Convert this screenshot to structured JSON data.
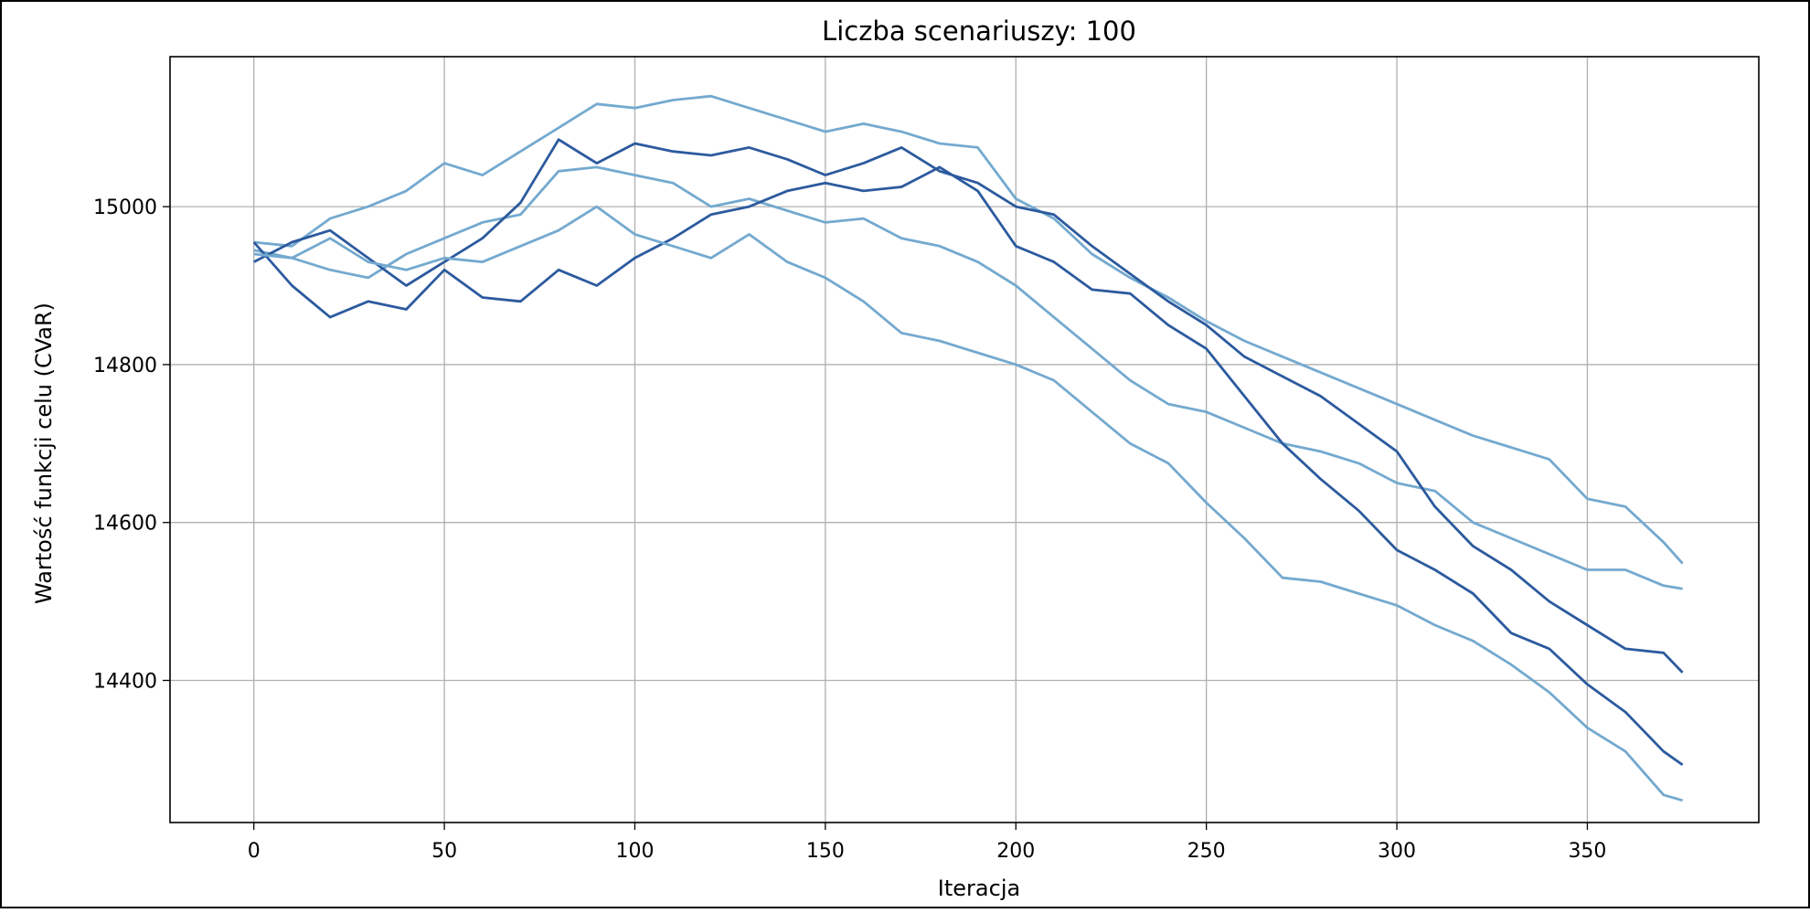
{
  "chart_data": {
    "type": "line",
    "title": "Liczba scenariuszy: 100",
    "xlabel": "Iteracja",
    "ylabel": "Wartość funkcji celu (CVaR)",
    "xlim": [
      -22,
      395
    ],
    "ylim": [
      14220,
      15190
    ],
    "xticks": [
      0,
      50,
      100,
      150,
      200,
      250,
      300,
      350
    ],
    "yticks": [
      14400,
      14600,
      14800,
      15000
    ],
    "grid": true,
    "legend": "none",
    "colors": {
      "light": "#74a9cf",
      "dark": "#2c5a9e",
      "grid": "#b0b0b0",
      "axis": "#000000"
    },
    "series": [
      {
        "color": "#74a9cf",
        "x": [
          0,
          10,
          20,
          30,
          40,
          50,
          60,
          70,
          80,
          90,
          100,
          110,
          120,
          130,
          140,
          150,
          160,
          170,
          180,
          190,
          200,
          210,
          220,
          230,
          240,
          250,
          260,
          270,
          280,
          290,
          300,
          310,
          320,
          330,
          340,
          350,
          360,
          370,
          375
        ],
        "y": [
          14955,
          14950,
          14985,
          15000,
          15020,
          15055,
          15040,
          15070,
          15100,
          15130,
          15125,
          15135,
          15140,
          15125,
          15110,
          15095,
          15105,
          15095,
          15080,
          15075,
          15010,
          14985,
          14940,
          14910,
          14885,
          14855,
          14830,
          14810,
          14790,
          14770,
          14750,
          14730,
          14710,
          14695,
          14680,
          14630,
          14620,
          14575,
          14548
        ]
      },
      {
        "color": "#74a9cf",
        "x": [
          0,
          10,
          20,
          30,
          40,
          50,
          60,
          70,
          80,
          90,
          100,
          110,
          120,
          130,
          140,
          150,
          160,
          170,
          180,
          190,
          200,
          210,
          220,
          230,
          240,
          250,
          260,
          270,
          280,
          290,
          300,
          310,
          320,
          330,
          340,
          350,
          360,
          370,
          375
        ],
        "y": [
          14945,
          14935,
          14920,
          14910,
          14940,
          14960,
          14980,
          14990,
          15045,
          15050,
          15040,
          15030,
          15000,
          15010,
          14995,
          14980,
          14985,
          14960,
          14950,
          14930,
          14900,
          14860,
          14820,
          14780,
          14750,
          14740,
          14720,
          14700,
          14690,
          14675,
          14650,
          14640,
          14600,
          14580,
          14560,
          14540,
          14540,
          14520,
          14516
        ]
      },
      {
        "color": "#2c5a9e",
        "x": [
          0,
          10,
          20,
          30,
          40,
          50,
          60,
          70,
          80,
          90,
          100,
          110,
          120,
          130,
          140,
          150,
          160,
          170,
          180,
          190,
          200,
          210,
          220,
          230,
          240,
          250,
          260,
          270,
          280,
          290,
          300,
          310,
          320,
          330,
          340,
          350,
          360,
          370,
          375
        ],
        "y": [
          14930,
          14955,
          14970,
          14935,
          14900,
          14930,
          14960,
          15005,
          15085,
          15055,
          15080,
          15070,
          15065,
          15075,
          15060,
          15040,
          15055,
          15075,
          15045,
          15030,
          15000,
          14990,
          14950,
          14915,
          14880,
          14850,
          14810,
          14785,
          14760,
          14725,
          14690,
          14620,
          14570,
          14540,
          14500,
          14470,
          14440,
          14435,
          14410
        ]
      },
      {
        "color": "#2c5a9e",
        "x": [
          0,
          10,
          20,
          30,
          40,
          50,
          60,
          70,
          80,
          90,
          100,
          110,
          120,
          130,
          140,
          150,
          160,
          170,
          180,
          190,
          200,
          210,
          220,
          230,
          240,
          250,
          260,
          270,
          280,
          290,
          300,
          310,
          320,
          330,
          340,
          350,
          360,
          370,
          375
        ],
        "y": [
          14955,
          14900,
          14860,
          14880,
          14870,
          14920,
          14885,
          14880,
          14920,
          14900,
          14935,
          14960,
          14990,
          15000,
          15020,
          15030,
          15020,
          15025,
          15050,
          15020,
          14950,
          14930,
          14895,
          14890,
          14850,
          14820,
          14760,
          14700,
          14655,
          14615,
          14565,
          14540,
          14510,
          14460,
          14440,
          14395,
          14360,
          14310,
          14293
        ]
      },
      {
        "color": "#74a9cf",
        "x": [
          0,
          10,
          20,
          30,
          40,
          50,
          60,
          70,
          80,
          90,
          100,
          110,
          120,
          130,
          140,
          150,
          160,
          170,
          180,
          190,
          200,
          210,
          220,
          230,
          240,
          250,
          260,
          270,
          280,
          290,
          300,
          310,
          320,
          330,
          340,
          350,
          360,
          370,
          375
        ],
        "y": [
          14940,
          14935,
          14960,
          14930,
          14920,
          14935,
          14930,
          14950,
          14970,
          15000,
          14965,
          14950,
          14935,
          14965,
          14930,
          14910,
          14880,
          14840,
          14830,
          14815,
          14800,
          14780,
          14740,
          14700,
          14675,
          14625,
          14580,
          14530,
          14525,
          14510,
          14495,
          14470,
          14450,
          14420,
          14385,
          14340,
          14310,
          14255,
          14248
        ]
      }
    ]
  }
}
